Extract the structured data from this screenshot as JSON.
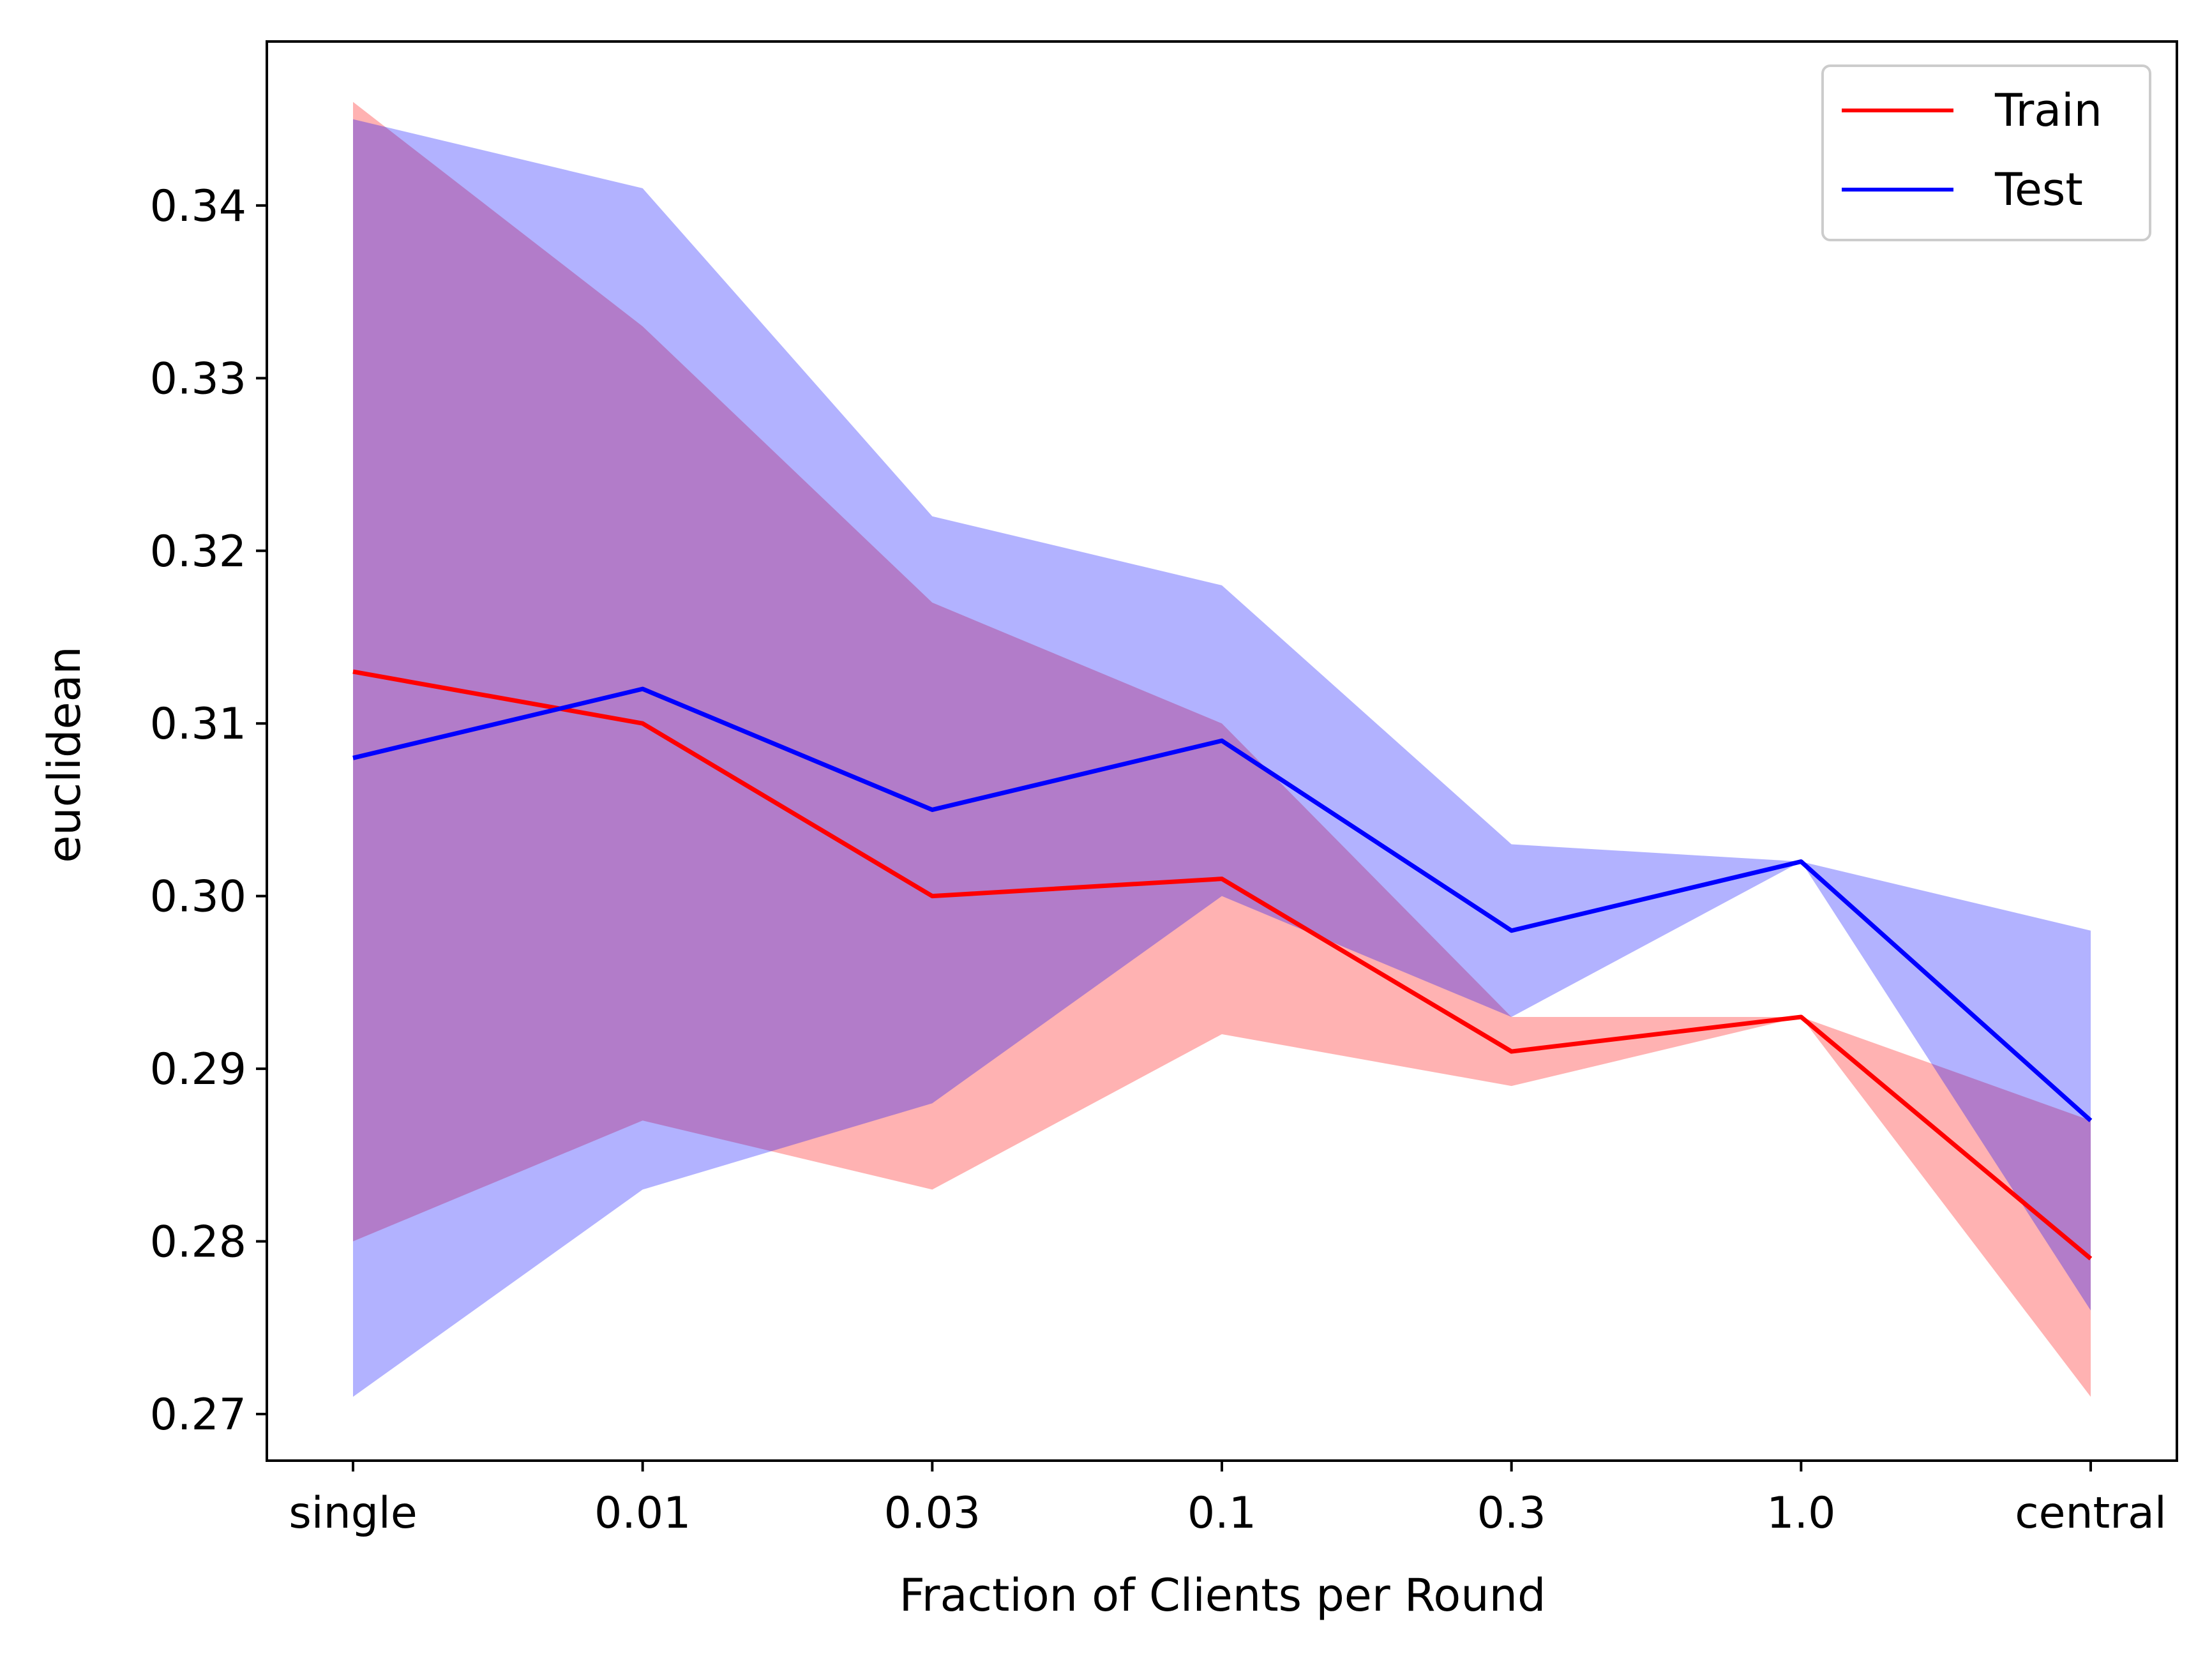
{
  "chart_data": {
    "type": "line",
    "title": "",
    "xlabel": "Fraction of Clients per Round",
    "ylabel": "euclidean",
    "categories": [
      "single",
      "0.01",
      "0.03",
      "0.1",
      "0.3",
      "1.0",
      "central"
    ],
    "ylim": [
      0.2673,
      0.3495
    ],
    "yticks": [
      "0.27",
      "0.28",
      "0.29",
      "0.30",
      "0.31",
      "0.32",
      "0.33",
      "0.34"
    ],
    "grid": false,
    "legend_position": "top-right",
    "series": [
      {
        "name": "Train",
        "color": "#ff0000",
        "band_color": "#ff0000",
        "values": [
          0.313,
          0.31,
          0.3,
          0.301,
          0.291,
          0.293,
          0.279
        ],
        "lower": [
          0.28,
          0.287,
          0.283,
          0.292,
          0.289,
          0.293,
          0.271
        ],
        "upper": [
          0.346,
          0.333,
          0.317,
          0.31,
          0.293,
          0.293,
          0.287
        ]
      },
      {
        "name": "Test",
        "color": "#0000ff",
        "band_color": "#0000ff",
        "values": [
          0.308,
          0.312,
          0.305,
          0.309,
          0.298,
          0.302,
          0.287
        ],
        "lower": [
          0.271,
          0.283,
          0.288,
          0.3,
          0.293,
          0.302,
          0.276
        ],
        "upper": [
          0.345,
          0.341,
          0.322,
          0.318,
          0.303,
          0.302,
          0.298
        ]
      }
    ]
  }
}
